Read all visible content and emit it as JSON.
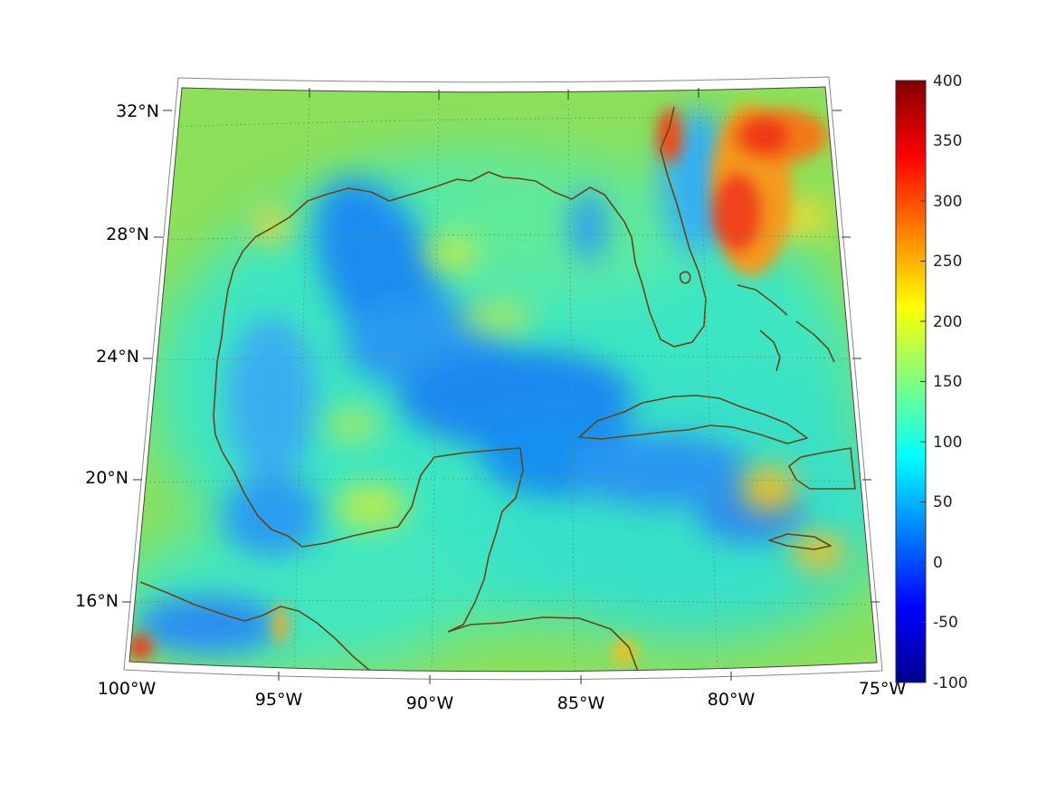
{
  "map": {
    "projection": "lambert-conic",
    "extent": {
      "lon": [
        -100,
        -75
      ],
      "lat": [
        14.5,
        32.6
      ]
    },
    "graticule": {
      "style": "dotted",
      "lon_step": 5,
      "lat_step": 4
    },
    "lon_labels": [
      "100°W",
      "95°W",
      "90°W",
      "85°W",
      "80°W",
      "75°W"
    ],
    "lat_labels": [
      "32°N",
      "28°N",
      "24°N",
      "20°N",
      "16°N"
    ],
    "coastline_color": "#6b4513",
    "colormap": "jet"
  },
  "colorbar": {
    "min": -100,
    "max": 400,
    "ticks": [
      "400",
      "350",
      "300",
      "250",
      "200",
      "150",
      "100",
      "50",
      "0",
      "-50",
      "-100"
    ]
  }
}
